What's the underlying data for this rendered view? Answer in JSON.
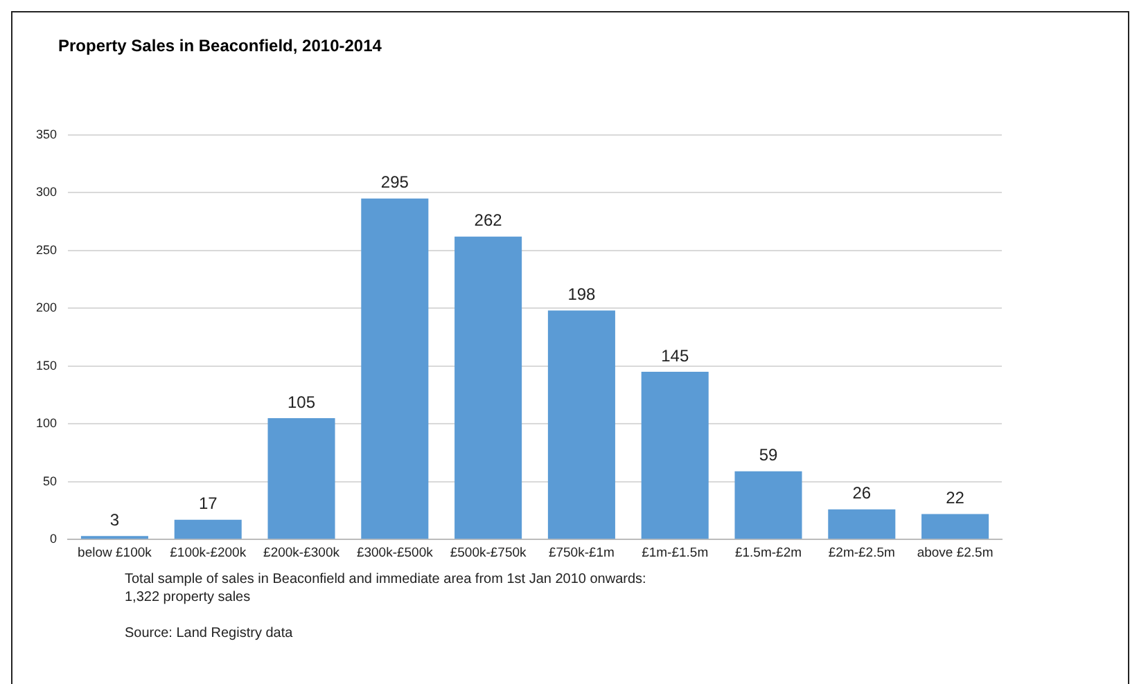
{
  "chart_data": {
    "type": "bar",
    "title": "Property Sales in Beaconfield, 2010-2014",
    "categories": [
      "below £100k",
      "£100k-£200k",
      "£200k-£300k",
      "£300k-£500k",
      "£500k-£750k",
      "£750k-£1m",
      "£1m-£1.5m",
      "£1.5m-£2m",
      "£2m-£2.5m",
      "above £2.5m"
    ],
    "values": [
      3,
      17,
      105,
      295,
      262,
      198,
      145,
      59,
      26,
      22
    ],
    "color": "#5b9bd5",
    "ylim": [
      0,
      350
    ],
    "yticks": [
      0,
      50,
      100,
      150,
      200,
      250,
      300,
      350
    ],
    "grid": "y",
    "legend": false,
    "data_labels": true,
    "annotations": [
      "Total sample of sales in Beaconfield and immediate area from 1st Jan 2010 onwards:",
      "1,322 property sales",
      "Source: Land Registry data"
    ]
  }
}
